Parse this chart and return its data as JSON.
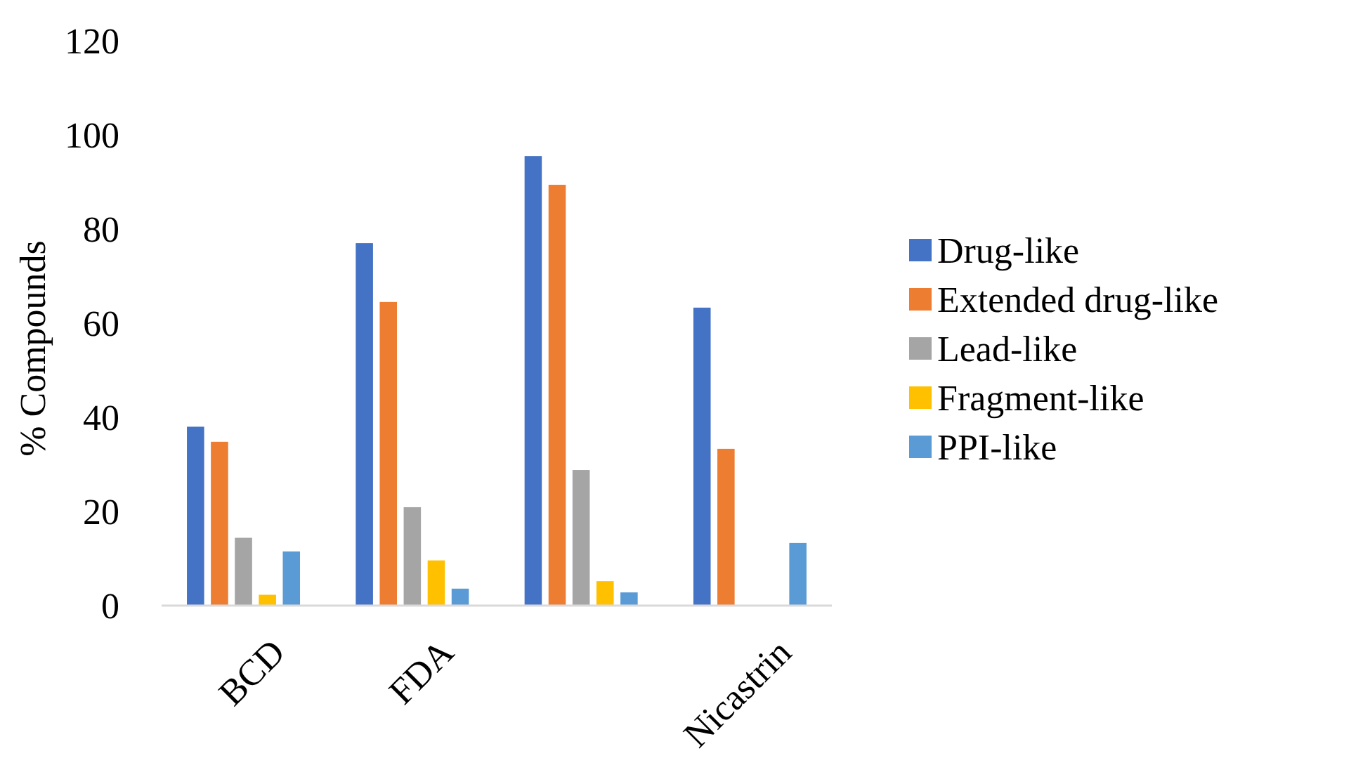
{
  "chart_data": {
    "type": "bar",
    "ylabel": "% Compounds",
    "categories": [
      "BCD",
      "FDA",
      null,
      "Nicastrin"
    ],
    "series": [
      {
        "name": "Drug-like",
        "color": "#4472c4",
        "values": [
          38,
          77,
          95.5,
          63.3
        ]
      },
      {
        "name": "Extended drug-like",
        "color": "#ed7d31",
        "values": [
          34.8,
          64.5,
          89.4,
          33.3
        ]
      },
      {
        "name": "Lead-like",
        "color": "#a5a5a5",
        "values": [
          14.4,
          20.9,
          28.8,
          null
        ]
      },
      {
        "name": "Fragment-like",
        "color": "#ffc000",
        "values": [
          2.3,
          9.6,
          5.2,
          null
        ]
      },
      {
        "name": "PPI-like",
        "color": "#5b9bd5",
        "values": [
          11.5,
          3.6,
          2.8,
          13.3
        ]
      }
    ],
    "ylim": [
      0,
      120
    ],
    "yticks": [
      0,
      20,
      40,
      60,
      80,
      100,
      120
    ],
    "grid": false,
    "legend": "right"
  }
}
